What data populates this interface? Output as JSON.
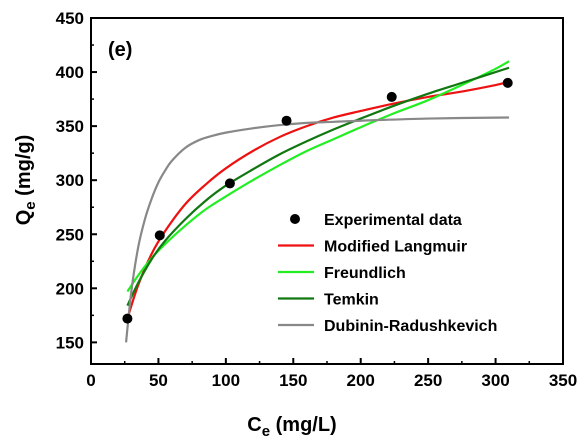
{
  "chart_data": {
    "type": "scatter",
    "panel_label": "(e)",
    "xlabel": {
      "main": "C",
      "sub": "e",
      "rest": " (mg/L)"
    },
    "ylabel": {
      "main": "Q",
      "sub": "e",
      "rest": " (mg/g)"
    },
    "xlim": [
      0,
      350
    ],
    "ylim": [
      130,
      450
    ],
    "x_ticks": [
      0,
      50,
      100,
      150,
      200,
      250,
      300,
      350
    ],
    "y_ticks": [
      150,
      200,
      250,
      300,
      350,
      400,
      450
    ],
    "grid": false,
    "legend_position": "bottom-right",
    "series": [
      {
        "name": "Experimental data",
        "kind": "points",
        "color": "#000000",
        "x": [
          27,
          51,
          103,
          145,
          223,
          309
        ],
        "y": [
          172,
          249,
          297,
          355,
          377,
          390
        ]
      },
      {
        "name": "Modified Langmuir",
        "kind": "line",
        "color": "#ee1111",
        "x": [
          27,
          35,
          45,
          55,
          70,
          85,
          100,
          120,
          140,
          160,
          180,
          200,
          225,
          250,
          275,
          300,
          310
        ],
        "y": [
          172,
          203,
          232,
          253,
          278,
          296,
          311,
          327,
          340,
          350,
          358,
          364,
          371,
          377,
          382,
          388,
          391
        ]
      },
      {
        "name": "Freundlich",
        "kind": "line",
        "color": "#22ee22",
        "x": [
          27,
          35,
          45,
          55,
          70,
          85,
          100,
          120,
          140,
          160,
          180,
          200,
          225,
          250,
          275,
          300,
          310
        ],
        "y": [
          197,
          212,
          228,
          241,
          258,
          273,
          285,
          300,
          314,
          327,
          338,
          349,
          362,
          374,
          388,
          403,
          410
        ]
      },
      {
        "name": "Temkin",
        "kind": "line",
        "color": "#117711",
        "x": [
          27,
          35,
          45,
          55,
          70,
          85,
          100,
          120,
          140,
          160,
          180,
          200,
          225,
          250,
          275,
          300,
          310
        ],
        "y": [
          184,
          205,
          227,
          244,
          264,
          281,
          295,
          310,
          324,
          336,
          347,
          357,
          369,
          380,
          390,
          400,
          404
        ]
      },
      {
        "name": "Dubinin-Radushkevich",
        "kind": "line",
        "color": "#888888",
        "x": [
          26,
          30,
          35,
          40,
          45,
          50,
          55,
          60,
          70,
          80,
          90,
          100,
          120,
          140,
          160,
          180,
          200,
          250,
          310
        ],
        "y": [
          150,
          198,
          238,
          264,
          283,
          298,
          309,
          318,
          330,
          337,
          341,
          344,
          348,
          351,
          353,
          354,
          355,
          357,
          358
        ]
      }
    ]
  }
}
